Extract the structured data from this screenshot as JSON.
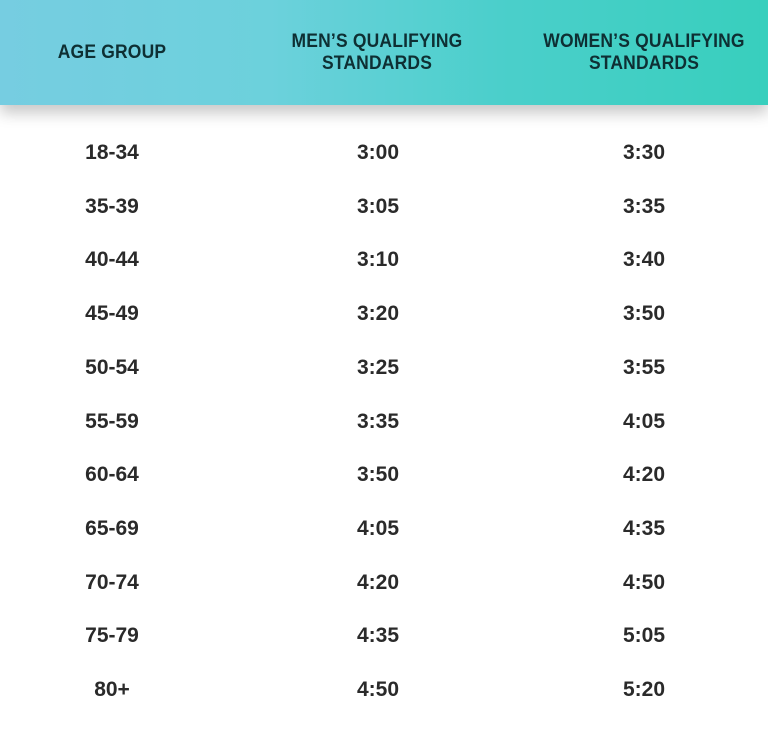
{
  "colors": {
    "header_start": "#76cde1",
    "header_end": "#38cfbd",
    "header_text": "#0e2f33",
    "body_text": "#2a2a2a"
  },
  "headers": [
    "AGE GROUP",
    "MEN’S QUALIFYING STANDARDS",
    "WOMEN’S QUALIFYING STANDARDS"
  ],
  "rows": [
    [
      "18-34",
      "3:00",
      "3:30"
    ],
    [
      "35-39",
      "3:05",
      "3:35"
    ],
    [
      "40-44",
      "3:10",
      "3:40"
    ],
    [
      "45-49",
      "3:20",
      "3:50"
    ],
    [
      "50-54",
      "3:25",
      "3:55"
    ],
    [
      "55-59",
      "3:35",
      "4:05"
    ],
    [
      "60-64",
      "3:50",
      "4:20"
    ],
    [
      "65-69",
      "4:05",
      "4:35"
    ],
    [
      "70-74",
      "4:20",
      "4:50"
    ],
    [
      "75-79",
      "4:35",
      "5:05"
    ],
    [
      "80+",
      "4:50",
      "5:20"
    ]
  ]
}
